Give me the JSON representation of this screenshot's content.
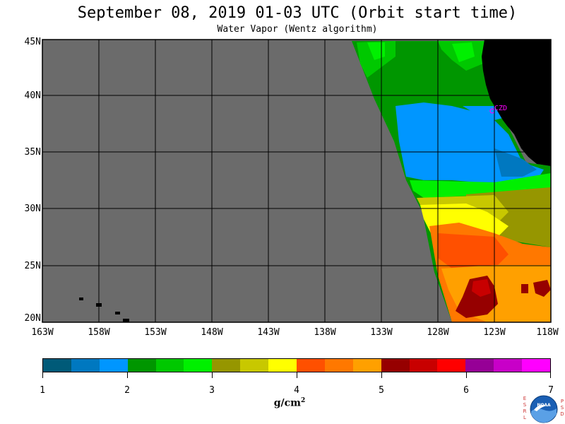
{
  "header": {
    "title": "September 08, 2019  01-03 UTC  (Orbit start time)",
    "subtitle": "Water Vapor (Wentz algorithm)"
  },
  "map": {
    "lat_labels": [
      "45N",
      "40N",
      "35N",
      "30N",
      "25N",
      "20N"
    ],
    "lon_labels": [
      "163W",
      "158W",
      "153W",
      "148W",
      "143W",
      "138W",
      "133W",
      "128W",
      "123W",
      "118W"
    ],
    "station_label": "CZD",
    "colors": {
      "no_data": "#6b6b6b",
      "land": "#000000",
      "gridline": "#000000",
      "station": "#ff00ff"
    }
  },
  "colorbar": {
    "tick_labels": [
      "1",
      "2",
      "3",
      "4",
      "5",
      "6",
      "7"
    ],
    "units_base": "g/cm",
    "units_exp": "2",
    "colors": [
      "#005a78",
      "#0078c0",
      "#0096ff",
      "#009600",
      "#00c800",
      "#00f000",
      "#969600",
      "#c8c800",
      "#ffff00",
      "#ff5000",
      "#ff7800",
      "#ffa000",
      "#960000",
      "#c80000",
      "#ff0000",
      "#960096",
      "#c800c8",
      "#ff00ff"
    ]
  },
  "logo": {
    "left_letters": [
      "E",
      "S",
      "R",
      "L"
    ],
    "right_letters": [
      "P",
      "S",
      "D"
    ],
    "center_text": "NOAA"
  }
}
